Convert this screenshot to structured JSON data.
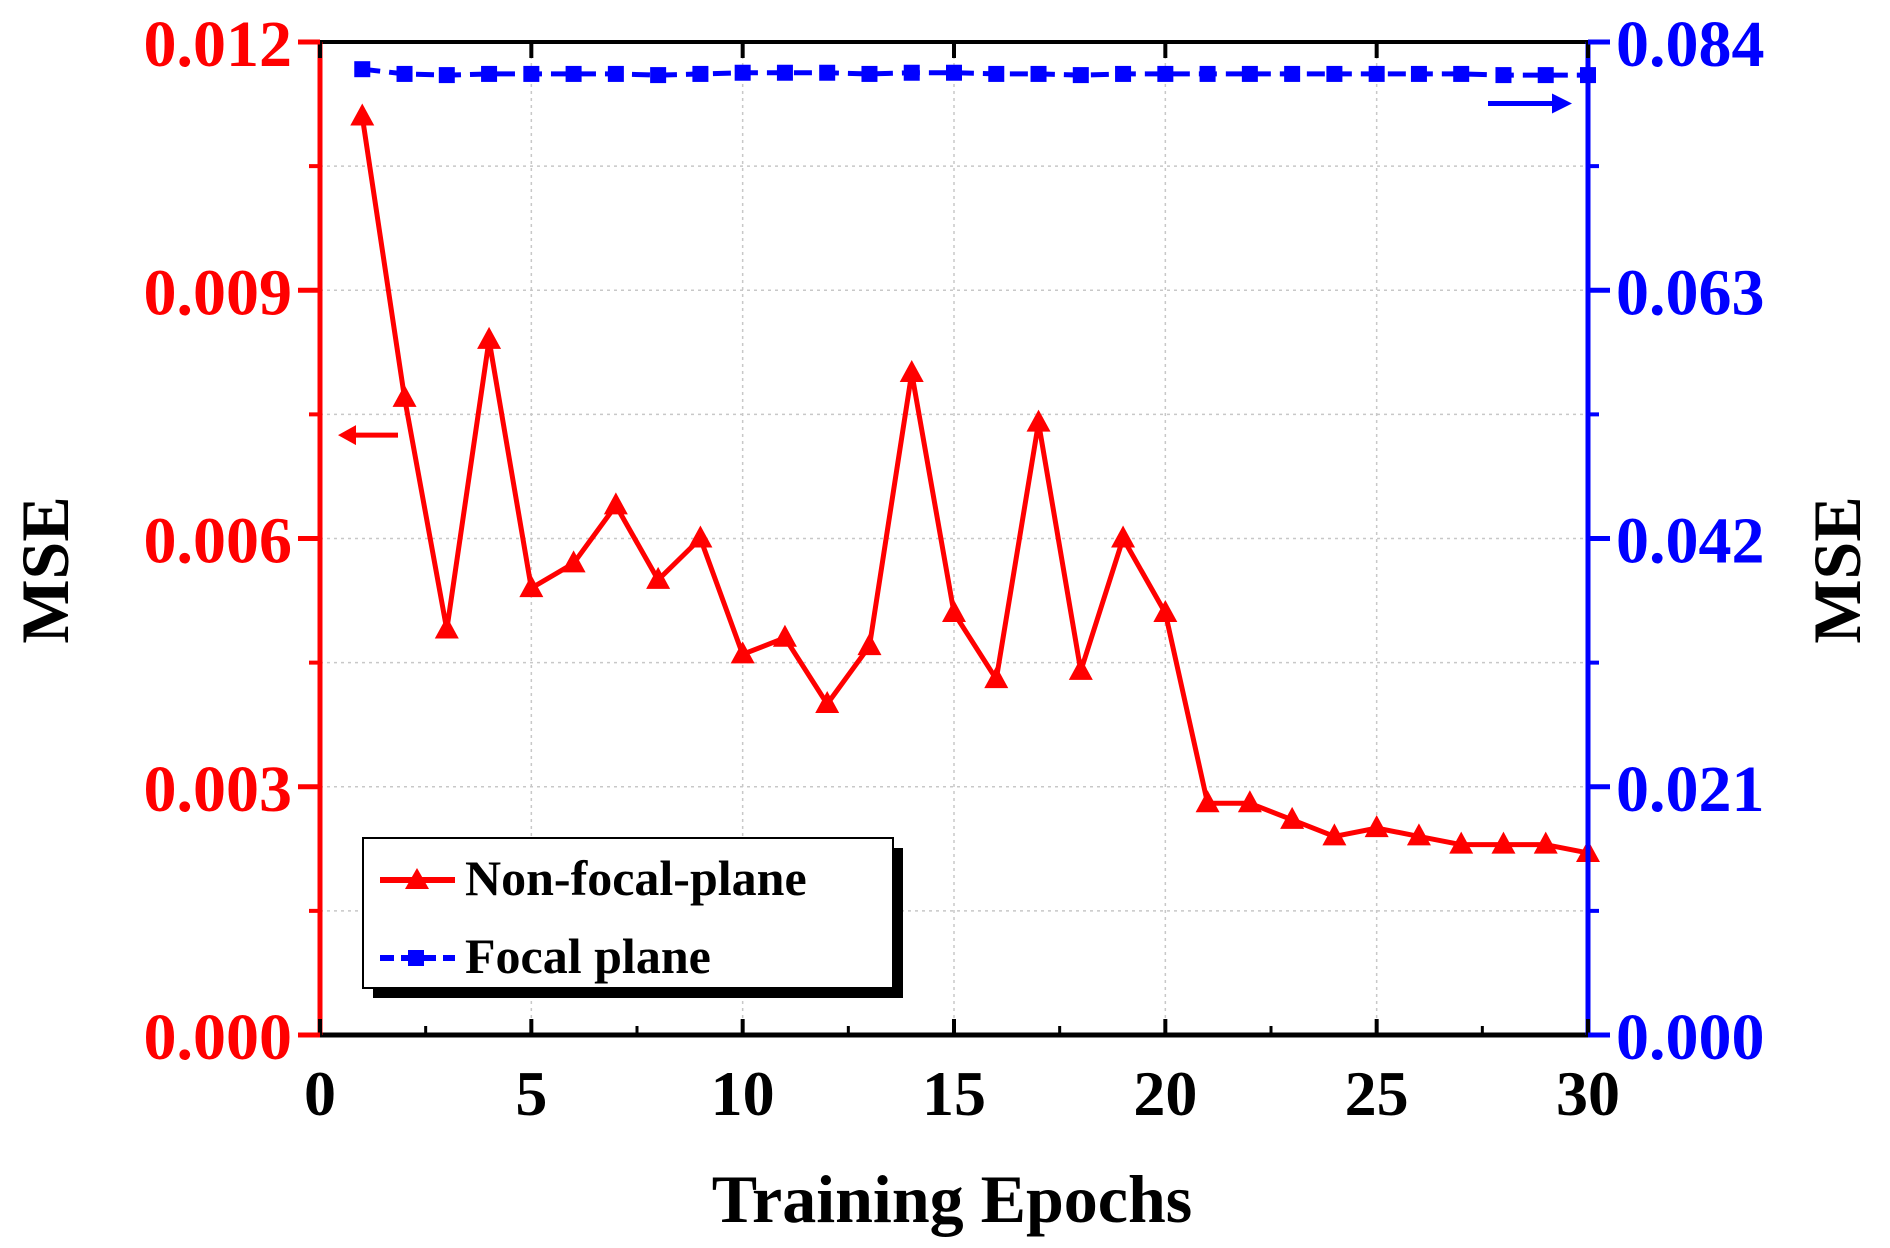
{
  "chart_data": {
    "type": "line",
    "xlabel": "Training Epochs",
    "ylabel_left": "MSE",
    "ylabel_right": "MSE",
    "xlim": [
      0,
      30
    ],
    "ylim_left": [
      0,
      0.012
    ],
    "ylim_right": [
      0,
      0.084
    ],
    "x_ticks": [
      0,
      5,
      10,
      15,
      20,
      25,
      30
    ],
    "x_tick_labels": [
      "0",
      "5",
      "10",
      "15",
      "20",
      "25",
      "30"
    ],
    "y_left_ticks": [
      0,
      0.003,
      0.006,
      0.009,
      0.012
    ],
    "y_left_tick_labels": [
      "0.000",
      "0.003",
      "0.006",
      "0.009",
      "0.012"
    ],
    "y_right_ticks": [
      0,
      0.021,
      0.042,
      0.063,
      0.084
    ],
    "y_right_tick_labels": [
      "0.000",
      "0.021",
      "0.042",
      "0.063",
      "0.084"
    ],
    "grid": true,
    "legend_position": "bottom-left",
    "colors": {
      "left_axis": "#ff0000",
      "right_axis": "#0000ff",
      "frame": "#000000"
    },
    "series": [
      {
        "name": "Non-focal-plane",
        "axis": "left",
        "marker": "triangle",
        "line_style": "solid",
        "color": "#ff0000",
        "x": [
          1,
          2,
          3,
          4,
          5,
          6,
          7,
          8,
          9,
          10,
          11,
          12,
          13,
          14,
          15,
          16,
          17,
          18,
          19,
          20,
          21,
          22,
          23,
          24,
          25,
          26,
          27,
          28,
          29,
          30
        ],
        "values": [
          0.0111,
          0.0077,
          0.0049,
          0.0084,
          0.0054,
          0.0057,
          0.0064,
          0.0055,
          0.006,
          0.0046,
          0.0048,
          0.004,
          0.0047,
          0.008,
          0.0051,
          0.0043,
          0.0074,
          0.0044,
          0.006,
          0.0051,
          0.0028,
          0.0028,
          0.0026,
          0.0024,
          0.0025,
          0.0024,
          0.0023,
          0.0023,
          0.0023,
          0.0022
        ]
      },
      {
        "name": "Focal plane",
        "axis": "right",
        "marker": "square",
        "line_style": "dashed",
        "color": "#0000ff",
        "x": [
          1,
          2,
          3,
          4,
          5,
          6,
          7,
          8,
          9,
          10,
          11,
          12,
          13,
          14,
          15,
          16,
          17,
          18,
          19,
          20,
          21,
          22,
          23,
          24,
          25,
          26,
          27,
          28,
          29,
          30
        ],
        "values": [
          0.0817,
          0.0813,
          0.0812,
          0.0813,
          0.0813,
          0.0813,
          0.0813,
          0.0812,
          0.0813,
          0.0814,
          0.0814,
          0.0814,
          0.0813,
          0.0814,
          0.0814,
          0.0813,
          0.0813,
          0.0812,
          0.0813,
          0.0813,
          0.0813,
          0.0813,
          0.0813,
          0.0813,
          0.0813,
          0.0813,
          0.0813,
          0.0812,
          0.0812,
          0.0812
        ]
      }
    ]
  }
}
